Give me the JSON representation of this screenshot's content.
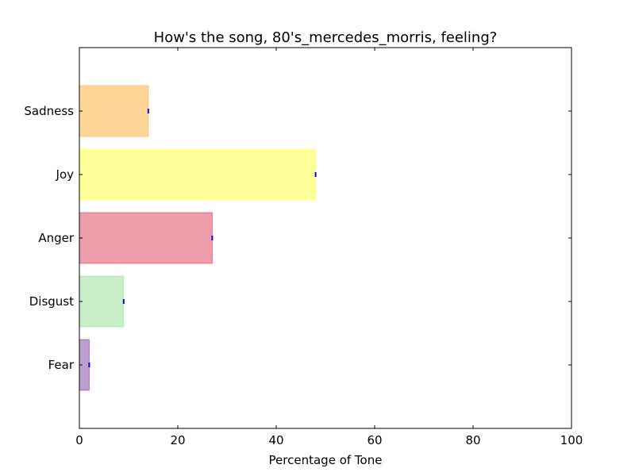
{
  "chart_data": {
    "type": "bar",
    "orientation": "horizontal",
    "title": "How's the song, 80's_mercedes_morris, feeling?",
    "xlabel": "Percentage of Tone",
    "ylabel": "",
    "xlim": [
      0,
      100
    ],
    "xticks": [
      0,
      20,
      40,
      60,
      80,
      100
    ],
    "categories": [
      "Fear",
      "Disgust",
      "Anger",
      "Joy",
      "Sadness"
    ],
    "values": [
      2,
      9,
      27,
      48,
      14
    ],
    "bar_colors": [
      "#7b3fa0",
      "#8fdf8f",
      "#dc3b53",
      "#ffff33",
      "#ffae2f"
    ],
    "grid": false,
    "legend": "none"
  }
}
